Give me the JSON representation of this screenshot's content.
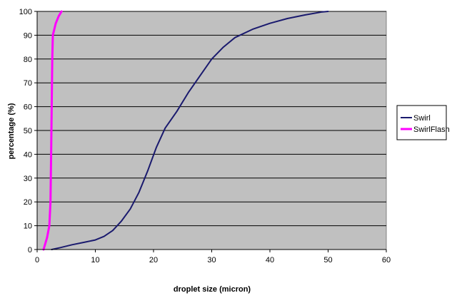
{
  "chart_data": {
    "type": "line",
    "title": "",
    "xlabel": "droplet size (micron)",
    "ylabel": "percentage (%)",
    "xlim": [
      0,
      60
    ],
    "ylim": [
      0,
      100
    ],
    "x_ticks": [
      "0",
      "10",
      "20",
      "30",
      "40",
      "50",
      "60"
    ],
    "y_ticks": [
      "0",
      "10",
      "20",
      "30",
      "40",
      "50",
      "60",
      "70",
      "80",
      "90",
      "100"
    ],
    "grid": true,
    "plot_background": "#c0c0c0",
    "legend_position": "right",
    "series": [
      {
        "name": "Swirl",
        "color": "#1a1a6e",
        "points": [
          [
            2.5,
            0
          ],
          [
            4,
            0.8
          ],
          [
            6,
            2
          ],
          [
            8,
            3
          ],
          [
            10,
            4
          ],
          [
            11.5,
            5.5
          ],
          [
            13,
            8
          ],
          [
            14.5,
            12
          ],
          [
            16,
            17
          ],
          [
            17.5,
            24
          ],
          [
            19,
            33
          ],
          [
            20.5,
            43
          ],
          [
            22,
            51
          ],
          [
            24,
            58
          ],
          [
            26,
            66
          ],
          [
            28,
            73
          ],
          [
            30,
            80
          ],
          [
            32,
            85
          ],
          [
            34,
            89
          ],
          [
            37,
            92.5
          ],
          [
            40,
            95
          ],
          [
            43,
            97
          ],
          [
            46,
            98.5
          ],
          [
            49,
            99.8
          ],
          [
            50,
            100
          ]
        ]
      },
      {
        "name": "SwirlFlash",
        "color": "#ff00ff",
        "points": [
          [
            1.1,
            0
          ],
          [
            1.7,
            5
          ],
          [
            2.1,
            10
          ],
          [
            2.3,
            20
          ],
          [
            2.4,
            40
          ],
          [
            2.5,
            60
          ],
          [
            2.6,
            80
          ],
          [
            2.7,
            90
          ],
          [
            3.2,
            95
          ],
          [
            3.7,
            98
          ],
          [
            4.2,
            100
          ]
        ]
      }
    ]
  }
}
